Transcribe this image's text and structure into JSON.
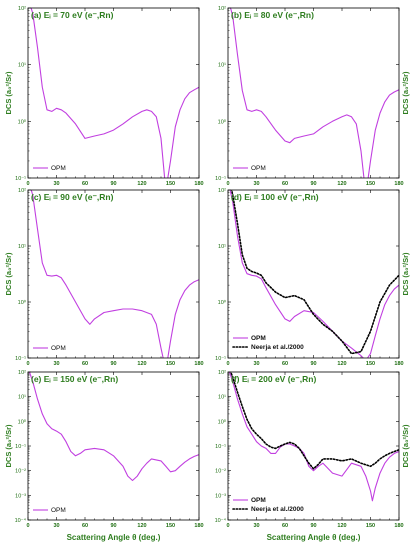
{
  "colors": {
    "opm": "#c13fe0",
    "neerja": "#000000",
    "title": "#2e7d1f",
    "axis": "#000000"
  },
  "x_axis_label": "Scattering Angle θ (deg.)",
  "y_axis_label": "DCS (a₀²/Sr)",
  "chart_data": [
    {
      "type": "line",
      "title": "(a) Eᵢ = 70 eV (e⁻,Rn)",
      "xlim": [
        0,
        180
      ],
      "ylim_log10": [
        -1,
        2
      ],
      "x_ticks": [
        0,
        30,
        60,
        90,
        120,
        150,
        180
      ],
      "y_tick_labels": [
        "10⁻¹",
        "10⁰",
        "10¹",
        "10²"
      ],
      "legend": "bottom-left",
      "series": [
        {
          "name": "OPM",
          "style": "solid",
          "x": [
            0,
            5,
            10,
            15,
            20,
            25,
            30,
            35,
            40,
            50,
            60,
            70,
            80,
            90,
            100,
            110,
            120,
            125,
            130,
            135,
            140,
            145,
            150,
            155,
            160,
            165,
            170,
            175,
            180
          ],
          "y": [
            150,
            80,
            20,
            4,
            1.6,
            1.5,
            1.7,
            1.6,
            1.4,
            0.9,
            0.5,
            0.55,
            0.6,
            0.7,
            0.9,
            1.2,
            1.5,
            1.6,
            1.5,
            1.2,
            0.5,
            0.06,
            0.2,
            0.8,
            1.6,
            2.5,
            3.2,
            3.6,
            4.0
          ]
        }
      ]
    },
    {
      "type": "line",
      "title": "(b) Eᵢ = 80 eV (e⁻,Rn)",
      "xlim": [
        0,
        180
      ],
      "ylim_log10": [
        -1,
        2
      ],
      "x_ticks": [
        0,
        30,
        60,
        90,
        120,
        150,
        180
      ],
      "y_tick_labels": [
        "10⁻¹",
        "10⁰",
        "10¹",
        "10²"
      ],
      "legend": "bottom-left",
      "series": [
        {
          "name": "OPM",
          "style": "solid",
          "x": [
            0,
            5,
            10,
            15,
            20,
            25,
            30,
            35,
            40,
            50,
            60,
            65,
            70,
            80,
            90,
            100,
            110,
            120,
            125,
            130,
            135,
            140,
            145,
            150,
            155,
            160,
            165,
            170,
            175,
            180
          ],
          "y": [
            150,
            70,
            15,
            3.5,
            1.6,
            1.5,
            1.6,
            1.5,
            1.2,
            0.7,
            0.45,
            0.42,
            0.5,
            0.55,
            0.6,
            0.8,
            1.0,
            1.2,
            1.3,
            1.2,
            0.9,
            0.3,
            0.05,
            0.2,
            0.7,
            1.4,
            2.2,
            2.9,
            3.3,
            3.6
          ]
        }
      ]
    },
    {
      "type": "line",
      "title": "(c) Eᵢ = 90 eV (e⁻,Rn)",
      "xlim": [
        0,
        180
      ],
      "ylim_log10": [
        -1,
        2
      ],
      "x_ticks": [
        0,
        30,
        60,
        90,
        120,
        150,
        180
      ],
      "y_tick_labels": [
        "10⁻¹",
        "10⁰",
        "10¹",
        "10²"
      ],
      "legend": "bottom-left",
      "series": [
        {
          "name": "OPM",
          "style": "solid",
          "x": [
            0,
            5,
            10,
            15,
            20,
            25,
            30,
            35,
            40,
            50,
            60,
            65,
            70,
            80,
            90,
            100,
            110,
            120,
            130,
            135,
            140,
            145,
            150,
            155,
            160,
            165,
            170,
            175,
            180
          ],
          "y": [
            160,
            80,
            20,
            5,
            3.0,
            2.9,
            3.0,
            2.7,
            2.0,
            1.0,
            0.5,
            0.4,
            0.5,
            0.65,
            0.7,
            0.75,
            0.75,
            0.7,
            0.6,
            0.4,
            0.15,
            0.06,
            0.2,
            0.6,
            1.1,
            1.6,
            2.0,
            2.3,
            2.5
          ]
        }
      ]
    },
    {
      "type": "line",
      "title": "(d) Eᵢ = 100 eV (e⁻,Rn)",
      "xlim": [
        0,
        180
      ],
      "ylim_log10": [
        -1,
        2
      ],
      "x_ticks": [
        0,
        30,
        60,
        90,
        120,
        150,
        180
      ],
      "y_tick_labels": [
        "10⁻¹",
        "10⁰",
        "10¹",
        "10²"
      ],
      "legend": "bottom-left",
      "series": [
        {
          "name": "OPM",
          "style": "solid",
          "x": [
            0,
            5,
            10,
            15,
            20,
            25,
            30,
            35,
            40,
            50,
            60,
            65,
            70,
            80,
            90,
            100,
            110,
            120,
            130,
            140,
            145,
            150,
            155,
            160,
            165,
            170,
            175,
            180
          ],
          "y": [
            150,
            60,
            15,
            5,
            3.2,
            3.0,
            2.9,
            2.6,
            1.8,
            0.9,
            0.5,
            0.45,
            0.55,
            0.7,
            0.65,
            0.45,
            0.3,
            0.2,
            0.15,
            0.11,
            0.09,
            0.12,
            0.25,
            0.5,
            0.9,
            1.3,
            1.7,
            2.0
          ]
        },
        {
          "name": "Neerja et al./2000",
          "style": "dotted",
          "x": [
            0,
            5,
            10,
            15,
            20,
            25,
            30,
            35,
            40,
            50,
            60,
            70,
            80,
            90,
            100,
            110,
            120,
            130,
            140,
            150,
            160,
            170,
            180
          ],
          "y": [
            200,
            80,
            25,
            7,
            4,
            3.5,
            3.3,
            3.0,
            2.2,
            1.5,
            1.2,
            1.3,
            1.1,
            0.6,
            0.4,
            0.3,
            0.2,
            0.12,
            0.13,
            0.3,
            1.0,
            2.0,
            3.0
          ]
        }
      ]
    },
    {
      "type": "line",
      "title": "(e) Eᵢ = 150 eV (e⁻,Rn)",
      "xlim": [
        0,
        180
      ],
      "ylim_log10": [
        -4,
        2
      ],
      "x_ticks": [
        0,
        30,
        60,
        90,
        120,
        150,
        180
      ],
      "y_tick_labels": [
        "10⁻⁴",
        "10⁻³",
        "10⁻²",
        "10⁻¹",
        "10⁰",
        "10¹",
        "10²"
      ],
      "legend": "bottom-left",
      "series": [
        {
          "name": "OPM",
          "style": "solid",
          "x": [
            0,
            5,
            10,
            15,
            20,
            25,
            30,
            35,
            40,
            45,
            50,
            55,
            60,
            70,
            80,
            90,
            100,
            105,
            110,
            115,
            120,
            125,
            130,
            140,
            145,
            150,
            155,
            160,
            165,
            170,
            175,
            180
          ],
          "y": [
            150,
            40,
            8,
            2,
            0.8,
            0.5,
            0.4,
            0.3,
            0.15,
            0.06,
            0.04,
            0.05,
            0.07,
            0.08,
            0.07,
            0.04,
            0.015,
            0.006,
            0.004,
            0.006,
            0.012,
            0.02,
            0.03,
            0.025,
            0.015,
            0.009,
            0.01,
            0.015,
            0.022,
            0.03,
            0.038,
            0.045
          ]
        }
      ]
    },
    {
      "type": "line",
      "title": "(f) Eᵢ = 200 eV (e⁻,Rn)",
      "xlim": [
        0,
        180
      ],
      "ylim_log10": [
        -4,
        2
      ],
      "x_ticks": [
        0,
        30,
        60,
        90,
        120,
        150,
        180
      ],
      "y_tick_labels": [
        "10⁻⁴",
        "10⁻³",
        "10⁻²",
        "10⁻¹",
        "10⁰",
        "10¹",
        "10²"
      ],
      "legend": "bottom-left",
      "series": [
        {
          "name": "OPM",
          "style": "solid",
          "x": [
            0,
            5,
            10,
            15,
            20,
            25,
            30,
            35,
            40,
            45,
            50,
            55,
            60,
            65,
            70,
            75,
            80,
            85,
            90,
            95,
            100,
            110,
            120,
            130,
            140,
            145,
            150,
            152,
            155,
            160,
            165,
            170,
            175,
            180
          ],
          "y": [
            150,
            40,
            8,
            2,
            0.6,
            0.3,
            0.15,
            0.1,
            0.08,
            0.05,
            0.05,
            0.09,
            0.12,
            0.12,
            0.1,
            0.08,
            0.05,
            0.015,
            0.01,
            0.015,
            0.02,
            0.008,
            0.006,
            0.02,
            0.015,
            0.006,
            0.0015,
            0.0006,
            0.002,
            0.008,
            0.02,
            0.035,
            0.05,
            0.06
          ]
        },
        {
          "name": "Neerja et al./2000",
          "style": "dotted",
          "x": [
            0,
            5,
            10,
            15,
            20,
            25,
            30,
            35,
            40,
            45,
            50,
            55,
            60,
            65,
            70,
            75,
            80,
            85,
            90,
            95,
            100,
            110,
            120,
            130,
            140,
            150,
            155,
            160,
            165,
            170,
            175,
            180
          ],
          "y": [
            200,
            60,
            15,
            4,
            1.2,
            0.5,
            0.3,
            0.2,
            0.12,
            0.09,
            0.08,
            0.1,
            0.12,
            0.14,
            0.12,
            0.08,
            0.04,
            0.02,
            0.012,
            0.018,
            0.03,
            0.03,
            0.025,
            0.03,
            0.02,
            0.015,
            0.02,
            0.03,
            0.04,
            0.05,
            0.06,
            0.07
          ]
        }
      ]
    }
  ]
}
